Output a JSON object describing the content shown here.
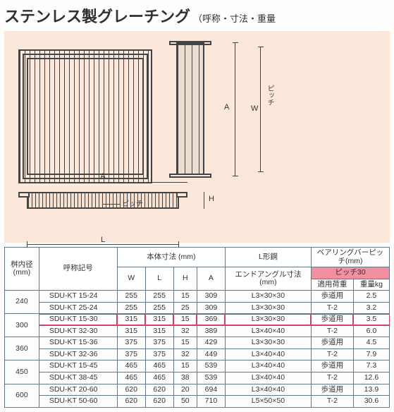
{
  "title": "ステンレス製グレーチング",
  "subtitle": "（呼称・寸法・重量",
  "diagram_labels": {
    "A": "A",
    "W": "W",
    "L": "L",
    "H": "H",
    "pitch": "ピッチ"
  },
  "table": {
    "headers": {
      "naikei": "桝内径\n(mm)",
      "kigo": "呼称記号",
      "hontai": "本体寸法 (mm)",
      "W": "W",
      "L": "L",
      "H": "H",
      "A": "A",
      "lkou": "L形鋼",
      "endangle": "エンドアングル寸法\n(mm)",
      "bearing": "ベアリングバーピッチ(mm)",
      "pitch30": "ピッチ30",
      "load": "適用荷重",
      "weight": "重量kg"
    },
    "rows": [
      {
        "naikei": "240",
        "code": "SDU-KT 15-24",
        "W": "255",
        "L": "255",
        "H": "15",
        "A": "309",
        "angle": "L3×30×30",
        "load": "歩道用",
        "wt": "2.5"
      },
      {
        "naikei": "",
        "code": "SDU-KT 25-24",
        "W": "255",
        "L": "255",
        "H": "25",
        "A": "309",
        "angle": "L3×30×30",
        "load": "T-2",
        "wt": "3.2"
      },
      {
        "naikei": "300",
        "code": "SDU-KT 15-30",
        "W": "315",
        "L": "315",
        "H": "15",
        "A": "369",
        "angle": "L3×30×30",
        "load": "歩道用",
        "wt": "3.5",
        "hl": true
      },
      {
        "naikei": "",
        "code": "SDU-KT 32-30",
        "W": "315",
        "L": "315",
        "H": "32",
        "A": "389",
        "angle": "L3×40×40",
        "load": "T-2",
        "wt": "6.0"
      },
      {
        "naikei": "360",
        "code": "SDU-KT 15-36",
        "W": "375",
        "L": "375",
        "H": "15",
        "A": "429",
        "angle": "L3×30×30",
        "load": "歩道用",
        "wt": "4.5"
      },
      {
        "naikei": "",
        "code": "SDU-KT 32-36",
        "W": "375",
        "L": "375",
        "H": "32",
        "A": "449",
        "angle": "L3×40×40",
        "load": "T-2",
        "wt": "7.9"
      },
      {
        "naikei": "450",
        "code": "SDU-KT 15-45",
        "W": "465",
        "L": "465",
        "H": "15",
        "A": "539",
        "angle": "L3×40×40",
        "load": "歩道用",
        "wt": "7.3"
      },
      {
        "naikei": "",
        "code": "SDU-KT 38-45",
        "W": "465",
        "L": "465",
        "H": "38",
        "A": "539",
        "angle": "L3×40×40",
        "load": "T-2",
        "wt": "12.6"
      },
      {
        "naikei": "600",
        "code": "SDU-KT 20-60",
        "W": "620",
        "L": "620",
        "H": "20",
        "A": "694",
        "angle": "L3×40×40",
        "load": "歩道用",
        "wt": "13.9"
      },
      {
        "naikei": "",
        "code": "SDU-KT 50-60",
        "W": "620",
        "L": "620",
        "H": "50",
        "A": "710",
        "angle": "L5×50×50",
        "load": "T-2",
        "wt": "30.6"
      }
    ]
  },
  "colors": {
    "panel_bg": "#fbe8da",
    "hl": "#d04060",
    "pitch_hdr": "#f28fa0",
    "border": "#678"
  }
}
